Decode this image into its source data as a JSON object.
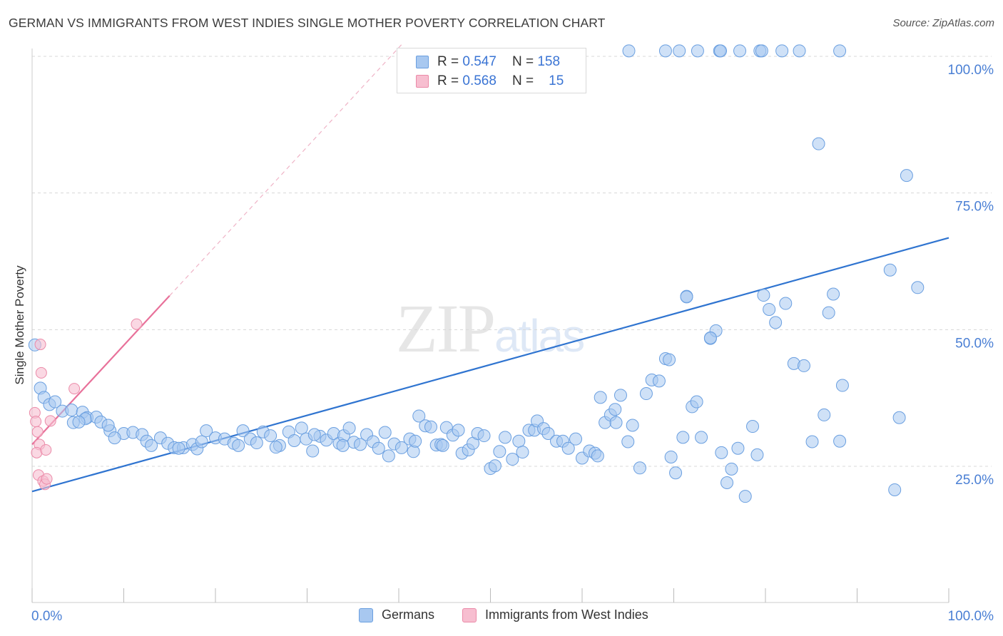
{
  "title": "GERMAN VS IMMIGRANTS FROM WEST INDIES SINGLE MOTHER POVERTY CORRELATION CHART",
  "source": "Source: ZipAtlas.com",
  "watermark": {
    "zip": "ZIP",
    "atlas": "atlas"
  },
  "legend": {
    "rows": [
      {
        "r_label": "R =",
        "r_value": "0.547",
        "n_label": "N =",
        "n_value": "158"
      },
      {
        "r_label": "R =",
        "r_value": "0.568",
        "n_label": "N =",
        "n_value": "15"
      }
    ]
  },
  "colors": {
    "blue_fill": "#a8c8f0",
    "blue_stroke": "#6a9fe0",
    "blue_line": "#2f74d0",
    "pink_fill": "#f7bed0",
    "pink_stroke": "#eb8aa8",
    "pink_line": "#e8719a",
    "tick_text": "#4a7fd4",
    "grid": "#d8d8d8"
  },
  "chart_data": {
    "type": "scatter",
    "title": "GERMAN VS IMMIGRANTS FROM WEST INDIES SINGLE MOTHER POVERTY CORRELATION CHART",
    "xlabel": "",
    "ylabel": "Single Mother Poverty",
    "xlim": [
      0,
      100
    ],
    "ylim": [
      0,
      102
    ],
    "x_tick_labels": [
      "0.0%",
      "100.0%"
    ],
    "y_ticks": [
      25,
      50,
      75,
      100
    ],
    "y_tick_labels": [
      "25.0%",
      "50.0%",
      "75.0%",
      "100.0%"
    ],
    "grid": true,
    "legend_position": "bottom-center",
    "series": [
      {
        "name": "Germans",
        "color": "#6a9fe0",
        "trend": {
          "x": [
            0,
            100
          ],
          "y": [
            20.4,
            66.8
          ]
        },
        "points": [
          [
            0.3,
            47.2
          ],
          [
            0.9,
            39.3
          ],
          [
            1.3,
            37.6
          ],
          [
            1.9,
            36.3
          ],
          [
            2.5,
            36.8
          ],
          [
            3.3,
            35.1
          ],
          [
            4.3,
            35.3
          ],
          [
            5.5,
            34.9
          ],
          [
            4.5,
            33.0
          ],
          [
            6.0,
            33.9
          ],
          [
            7.0,
            34.0
          ],
          [
            5.8,
            33.7
          ],
          [
            7.5,
            33.1
          ],
          [
            8.5,
            31.5
          ],
          [
            10.0,
            31.0
          ],
          [
            9.0,
            30.2
          ],
          [
            11.0,
            31.2
          ],
          [
            12.0,
            30.8
          ],
          [
            12.5,
            29.6
          ],
          [
            13.0,
            28.8
          ],
          [
            14.0,
            30.2
          ],
          [
            14.8,
            29.2
          ],
          [
            15.5,
            28.4
          ],
          [
            16.5,
            28.4
          ],
          [
            17.5,
            29.0
          ],
          [
            18.0,
            28.2
          ],
          [
            18.5,
            29.5
          ],
          [
            19.0,
            31.5
          ],
          [
            20.0,
            30.2
          ],
          [
            21.0,
            30.0
          ],
          [
            22.0,
            29.2
          ],
          [
            23.0,
            31.5
          ],
          [
            23.8,
            30.0
          ],
          [
            24.5,
            29.3
          ],
          [
            25.2,
            31.3
          ],
          [
            26.0,
            30.6
          ],
          [
            27.0,
            28.8
          ],
          [
            28.0,
            31.3
          ],
          [
            28.6,
            29.7
          ],
          [
            29.4,
            32.0
          ],
          [
            29.9,
            30.0
          ],
          [
            30.6,
            27.8
          ],
          [
            31.4,
            30.5
          ],
          [
            32.1,
            29.8
          ],
          [
            32.9,
            31.0
          ],
          [
            33.5,
            29.2
          ],
          [
            34.0,
            30.6
          ],
          [
            34.6,
            32.0
          ],
          [
            35.1,
            29.4
          ],
          [
            35.8,
            29.0
          ],
          [
            36.5,
            30.8
          ],
          [
            37.2,
            29.5
          ],
          [
            37.8,
            28.3
          ],
          [
            38.5,
            31.2
          ],
          [
            38.9,
            26.9
          ],
          [
            39.5,
            29.1
          ],
          [
            40.3,
            28.4
          ],
          [
            41.2,
            30.0
          ],
          [
            41.6,
            27.7
          ],
          [
            42.2,
            34.2
          ],
          [
            42.9,
            32.4
          ],
          [
            43.5,
            32.2
          ],
          [
            44.1,
            28.9
          ],
          [
            44.6,
            29.0
          ],
          [
            45.2,
            32.1
          ],
          [
            45.9,
            30.7
          ],
          [
            46.5,
            31.6
          ],
          [
            46.9,
            27.4
          ],
          [
            47.6,
            28.0
          ],
          [
            48.1,
            29.2
          ],
          [
            48.6,
            31.0
          ],
          [
            49.3,
            30.6
          ],
          [
            50.0,
            24.6
          ],
          [
            50.5,
            25.1
          ],
          [
            51.0,
            27.7
          ],
          [
            51.6,
            30.3
          ],
          [
            52.4,
            26.3
          ],
          [
            53.1,
            29.6
          ],
          [
            53.5,
            27.6
          ],
          [
            54.2,
            31.6
          ],
          [
            54.8,
            31.6
          ],
          [
            55.1,
            33.3
          ],
          [
            55.8,
            31.9
          ],
          [
            56.3,
            31.0
          ],
          [
            57.2,
            29.6
          ],
          [
            57.9,
            29.6
          ],
          [
            58.5,
            28.3
          ],
          [
            59.3,
            30.0
          ],
          [
            60.0,
            26.5
          ],
          [
            60.8,
            27.8
          ],
          [
            61.4,
            27.4
          ],
          [
            62.0,
            37.6
          ],
          [
            62.5,
            33.0
          ],
          [
            63.1,
            34.4
          ],
          [
            63.6,
            35.4
          ],
          [
            64.2,
            38.0
          ],
          [
            65.0,
            29.5
          ],
          [
            65.5,
            32.5
          ],
          [
            66.3,
            24.7
          ],
          [
            67.0,
            38.3
          ],
          [
            67.6,
            40.8
          ],
          [
            68.4,
            40.6
          ],
          [
            69.1,
            44.7
          ],
          [
            69.7,
            26.7
          ],
          [
            70.2,
            23.8
          ],
          [
            71.0,
            30.3
          ],
          [
            71.4,
            56.1
          ],
          [
            72.0,
            35.9
          ],
          [
            72.5,
            36.8
          ],
          [
            73.0,
            30.3
          ],
          [
            74.0,
            48.4
          ],
          [
            74.6,
            49.8
          ],
          [
            75.2,
            27.5
          ],
          [
            75.8,
            22.0
          ],
          [
            76.3,
            24.5
          ],
          [
            77.0,
            28.3
          ],
          [
            77.8,
            19.5
          ],
          [
            78.6,
            32.3
          ],
          [
            79.1,
            27.1
          ],
          [
            79.8,
            56.3
          ],
          [
            80.4,
            53.7
          ],
          [
            81.1,
            51.3
          ],
          [
            82.2,
            54.8
          ],
          [
            83.1,
            43.8
          ],
          [
            84.2,
            43.4
          ],
          [
            85.1,
            29.5
          ],
          [
            85.8,
            84.0
          ],
          [
            86.4,
            34.4
          ],
          [
            86.9,
            53.1
          ],
          [
            87.4,
            56.5
          ],
          [
            88.1,
            29.6
          ],
          [
            88.4,
            39.8
          ],
          [
            93.6,
            60.9
          ],
          [
            94.1,
            20.7
          ],
          [
            94.6,
            33.9
          ],
          [
            96.6,
            57.7
          ],
          [
            74.0,
            48.5
          ],
          [
            95.4,
            78.2
          ],
          [
            65.1,
            101.0
          ],
          [
            69.1,
            101.0
          ],
          [
            70.6,
            101.0
          ],
          [
            72.6,
            101.0
          ],
          [
            75.0,
            101.0
          ],
          [
            75.1,
            101.0
          ],
          [
            77.2,
            101.0
          ],
          [
            79.4,
            101.0
          ],
          [
            79.6,
            101.0
          ],
          [
            81.8,
            101.0
          ],
          [
            83.7,
            101.0
          ],
          [
            88.1,
            101.0
          ],
          [
            5.1,
            33.1
          ],
          [
            8.3,
            32.5
          ],
          [
            16.0,
            28.3
          ],
          [
            22.5,
            28.8
          ],
          [
            26.6,
            28.5
          ],
          [
            30.8,
            30.8
          ],
          [
            33.9,
            28.8
          ],
          [
            41.8,
            29.6
          ],
          [
            44.8,
            28.8
          ],
          [
            61.7,
            26.9
          ],
          [
            63.7,
            33.0
          ],
          [
            69.5,
            44.5
          ],
          [
            71.4,
            56.0
          ]
        ]
      },
      {
        "name": "Immigrants from West Indies",
        "color": "#eb8aa8",
        "trend": {
          "x": [
            0,
            15
          ],
          "y": [
            29.0,
            56.2
          ]
        },
        "trend_dashed_extension": {
          "x": [
            15,
            40.5
          ],
          "y": [
            56.2,
            102.5
          ]
        },
        "points": [
          [
            0.3,
            34.8
          ],
          [
            0.4,
            33.2
          ],
          [
            0.6,
            31.3
          ],
          [
            0.8,
            29.0
          ],
          [
            0.5,
            27.5
          ],
          [
            0.7,
            23.4
          ],
          [
            1.0,
            42.1
          ],
          [
            1.2,
            22.3
          ],
          [
            1.4,
            21.7
          ],
          [
            1.5,
            28.0
          ],
          [
            1.6,
            22.7
          ],
          [
            2.0,
            33.3
          ],
          [
            4.6,
            39.2
          ],
          [
            0.9,
            47.3
          ],
          [
            11.4,
            51.0
          ]
        ]
      }
    ]
  },
  "bottom_legend": [
    "Germans",
    "Immigrants from West Indies"
  ]
}
